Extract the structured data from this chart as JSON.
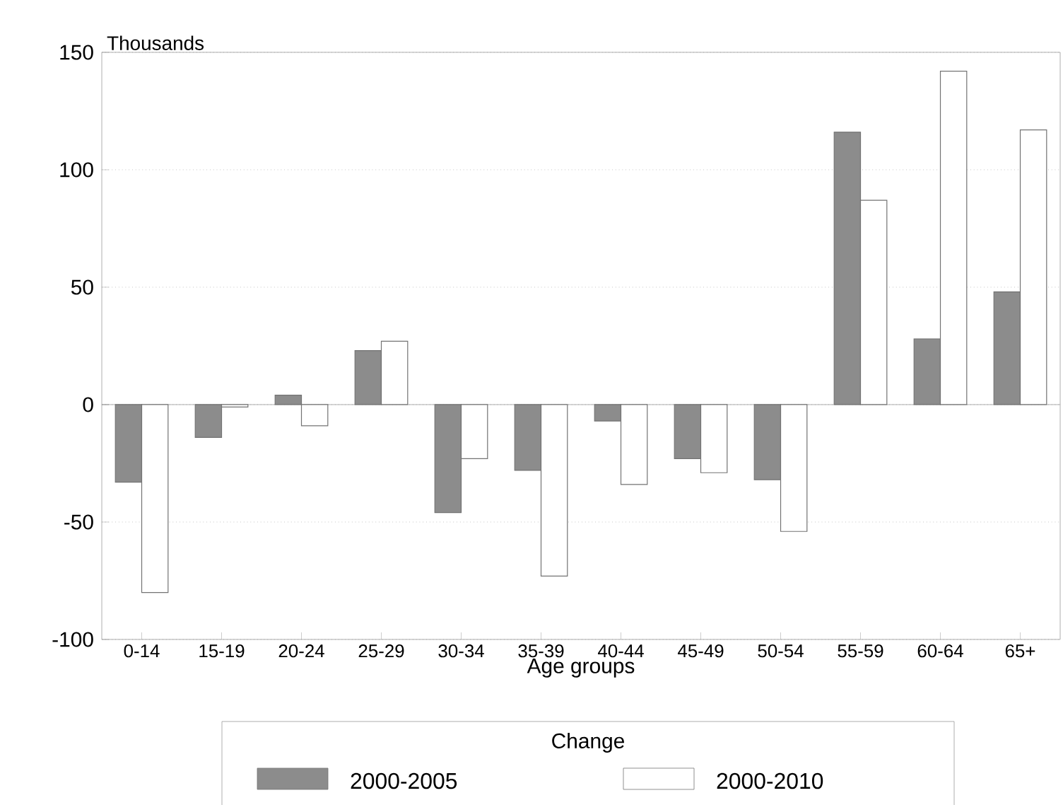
{
  "chart_data": {
    "type": "bar",
    "ylabel": "Thousands",
    "xlabel": "Age groups",
    "legend_title": "Change",
    "categories": [
      "0-14",
      "15-19",
      "20-24",
      "25-29",
      "30-34",
      "35-39",
      "40-44",
      "45-49",
      "50-54",
      "55-59",
      "60-64",
      "65+"
    ],
    "series": [
      {
        "name": "2000-2005",
        "color": "#8c8c8c",
        "values": [
          -33,
          -14,
          4,
          23,
          -46,
          -28,
          -7,
          -23,
          -32,
          116,
          28,
          48
        ]
      },
      {
        "name": "2000-2010",
        "color": "#ffffff",
        "values": [
          -80,
          -1,
          -9,
          27,
          -23,
          -73,
          -34,
          -29,
          -54,
          87,
          142,
          117
        ]
      }
    ],
    "ylim": [
      -100,
      150
    ],
    "yticks": [
      -100,
      -50,
      0,
      50,
      100,
      150
    ],
    "grid": "y",
    "legend": "bottom"
  }
}
